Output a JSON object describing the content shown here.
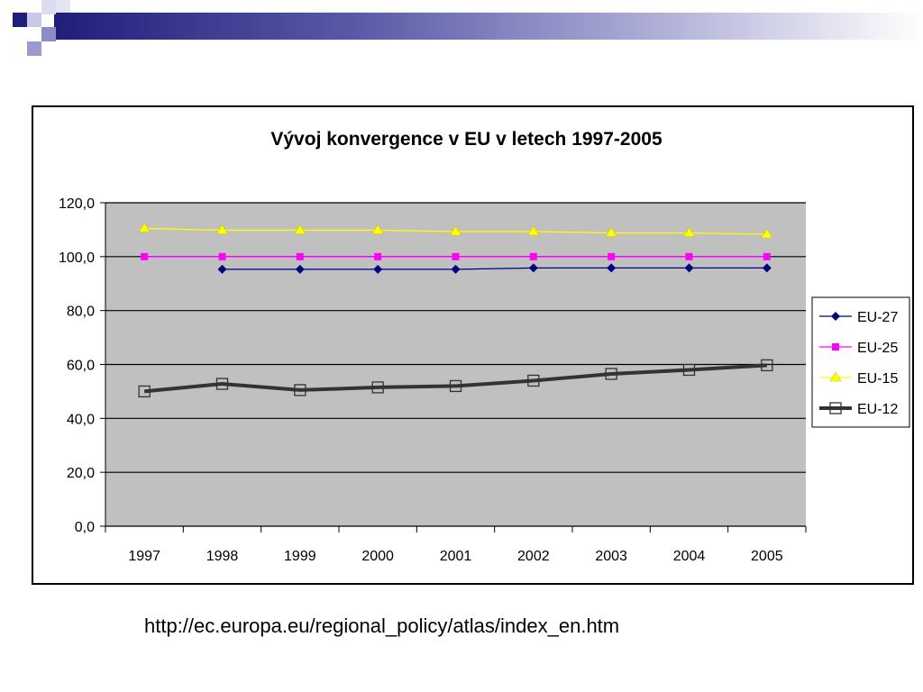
{
  "banner": {
    "colors": {
      "dark": "#1f1f7a",
      "mid": "#6d6dbf",
      "light": "#b8b8e0",
      "fade": "#ffffff"
    }
  },
  "footer": {
    "source_url": "http://ec.europa.eu/regional_policy/atlas/index_en.htm"
  },
  "chart_data": {
    "type": "line",
    "title": "Vývoj konvergence v EU v letech 1997-2005",
    "xlabel": "",
    "ylabel": "",
    "categories": [
      "1997",
      "1998",
      "1999",
      "2000",
      "2001",
      "2002",
      "2003",
      "2004",
      "2005"
    ],
    "ylim": [
      0,
      120
    ],
    "yticks": [
      "0,0",
      "20,0",
      "40,0",
      "60,0",
      "80,0",
      "100,0",
      "120,0"
    ],
    "plot_background": "#c0c0c0",
    "grid": true,
    "legend_position": "right",
    "series": [
      {
        "name": "EU-27",
        "color": "#000080",
        "marker": "diamond",
        "values": [
          null,
          95.3,
          95.3,
          95.3,
          95.3,
          95.8,
          95.8,
          95.8,
          95.8
        ]
      },
      {
        "name": "EU-25",
        "color": "#ff00ff",
        "marker": "square",
        "values": [
          100,
          100,
          100,
          100,
          100,
          100,
          100,
          100,
          100
        ]
      },
      {
        "name": "EU-15",
        "color": "#ffff00",
        "marker": "triangle",
        "values": [
          110.5,
          109.8,
          109.8,
          109.8,
          109.3,
          109.3,
          108.8,
          108.8,
          108.3
        ]
      },
      {
        "name": "EU-12",
        "color": "#333333",
        "marker": "open-square",
        "values": [
          50.0,
          52.8,
          50.5,
          51.5,
          52.0,
          54.0,
          56.5,
          58.0,
          59.7
        ]
      }
    ]
  }
}
